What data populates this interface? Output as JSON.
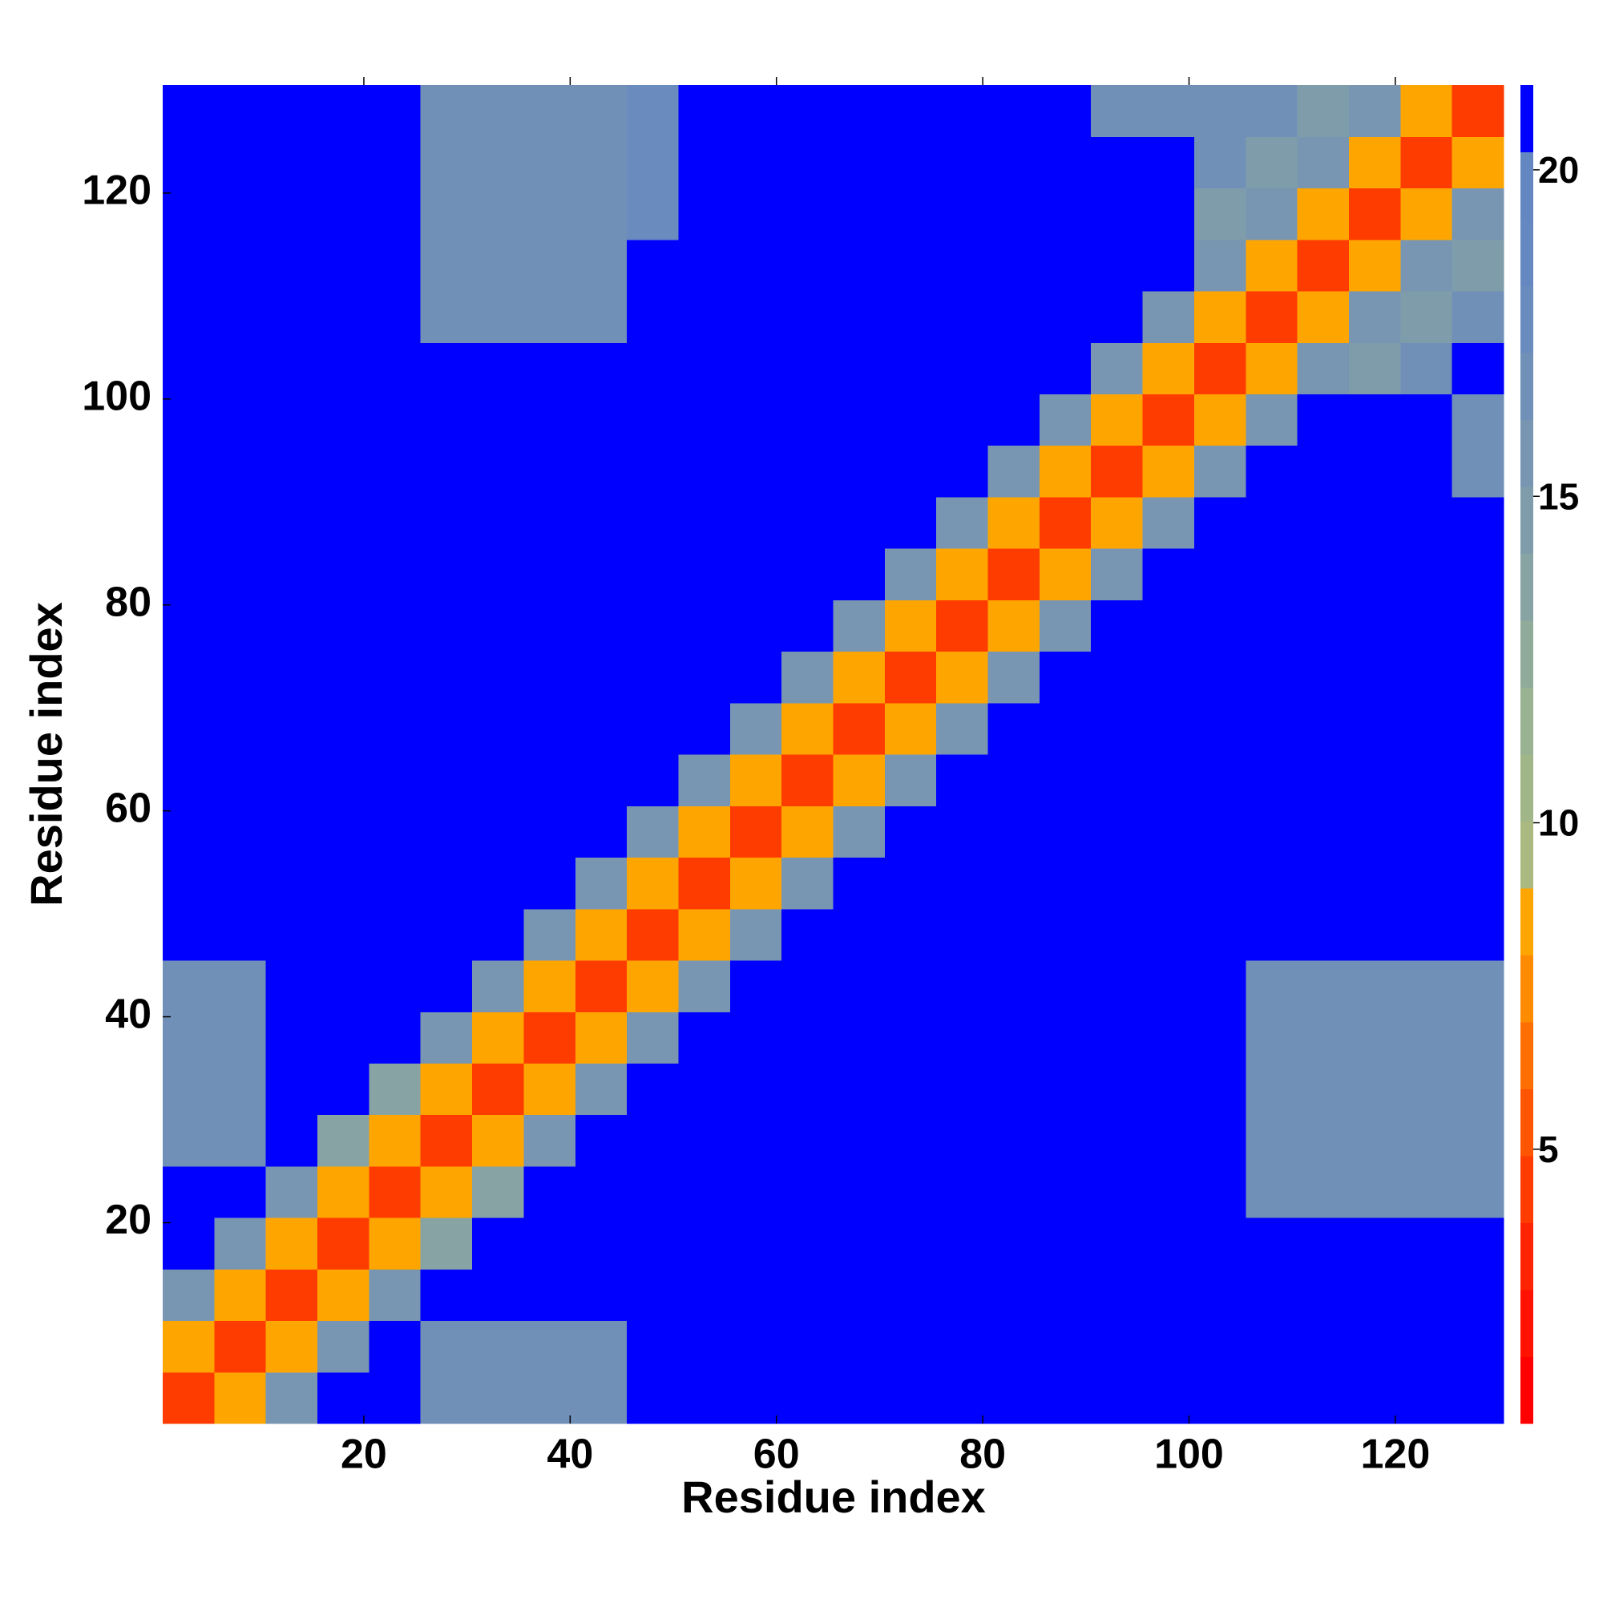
{
  "chart_data": {
    "type": "heatmap",
    "x_label": "Residue index",
    "y_label": "Residue index",
    "x_bins": [
      0.5,
      5.5,
      10.5,
      15.5,
      20.5,
      25.5,
      30.5,
      35.5,
      40.5,
      45.5,
      50.5,
      55.5,
      60.5,
      65.5,
      70.5,
      75.5,
      80.5,
      85.5,
      90.5,
      95.5,
      100.5,
      105.5,
      110.5,
      115.5,
      120.5,
      125.5,
      130.5
    ],
    "y_bins": [
      0.5,
      5.5,
      10.5,
      15.5,
      20.5,
      25.5,
      30.5,
      35.5,
      40.5,
      45.5,
      50.5,
      55.5,
      60.5,
      65.5,
      70.5,
      75.5,
      80.5,
      85.5,
      90.5,
      95.5,
      100.5,
      105.5,
      110.5,
      115.5,
      120.5,
      125.5,
      130.5
    ],
    "xlim": [
      0.5,
      130.5
    ],
    "ylim": [
      0.5,
      130.5
    ],
    "xticks": [
      20,
      40,
      60,
      80,
      100,
      120
    ],
    "yticks": [
      20,
      40,
      60,
      80,
      100,
      120
    ],
    "zlim": [
      0.8,
      21.3
    ],
    "zticks": [
      5,
      10,
      15,
      20
    ],
    "colors": [
      "#ff0000",
      "#ff1200",
      "#ff2400",
      "#ff3c00",
      "#ff5500",
      "#ff6e00",
      "#ff8c00",
      "#ffa500",
      "#a9b97f",
      "#a0b689",
      "#98b292",
      "#90ab9a",
      "#88a3a3",
      "#7f9cab",
      "#7896b2",
      "#7090b8",
      "#6a8bbd",
      "#6688c0",
      "#6487c2",
      "#0000ff"
    ],
    "z": [
      [
        4,
        9,
        16,
        22,
        22,
        17,
        17,
        17,
        17,
        22,
        22,
        22,
        22,
        22,
        22,
        22,
        22,
        22,
        22,
        22,
        22,
        22,
        22,
        22,
        22,
        22
      ],
      [
        9,
        4,
        9,
        16,
        22,
        17,
        17,
        17,
        17,
        22,
        22,
        22,
        22,
        22,
        22,
        22,
        22,
        22,
        22,
        22,
        22,
        22,
        22,
        22,
        22,
        22
      ],
      [
        16,
        9,
        4,
        9,
        16,
        22,
        22,
        22,
        22,
        22,
        22,
        22,
        22,
        22,
        22,
        22,
        22,
        22,
        22,
        22,
        22,
        22,
        22,
        22,
        22,
        22
      ],
      [
        22,
        16,
        9,
        4,
        9,
        14,
        22,
        22,
        22,
        22,
        22,
        22,
        22,
        22,
        22,
        22,
        22,
        22,
        22,
        22,
        22,
        22,
        22,
        22,
        22,
        22
      ],
      [
        22,
        22,
        16,
        9,
        4,
        9,
        14,
        22,
        22,
        22,
        22,
        22,
        22,
        22,
        22,
        22,
        22,
        22,
        22,
        22,
        22,
        17,
        17,
        17,
        17,
        17
      ],
      [
        17,
        17,
        22,
        14,
        9,
        4,
        9,
        16,
        22,
        22,
        22,
        22,
        22,
        22,
        22,
        22,
        22,
        22,
        22,
        22,
        22,
        17,
        17,
        17,
        17,
        17
      ],
      [
        17,
        17,
        22,
        22,
        14,
        9,
        4,
        9,
        16,
        22,
        22,
        22,
        22,
        22,
        22,
        22,
        22,
        22,
        22,
        22,
        22,
        17,
        17,
        17,
        17,
        17
      ],
      [
        17,
        17,
        22,
        22,
        22,
        16,
        9,
        4,
        9,
        16,
        22,
        22,
        22,
        22,
        22,
        22,
        22,
        22,
        22,
        22,
        22,
        17,
        17,
        17,
        17,
        17
      ],
      [
        17,
        17,
        22,
        22,
        22,
        22,
        16,
        9,
        4,
        9,
        16,
        22,
        22,
        22,
        22,
        22,
        22,
        22,
        22,
        22,
        22,
        17,
        17,
        17,
        17,
        17
      ],
      [
        22,
        22,
        22,
        22,
        22,
        22,
        22,
        16,
        9,
        4,
        9,
        16,
        22,
        22,
        22,
        22,
        22,
        22,
        22,
        22,
        22,
        22,
        22,
        22,
        22,
        22
      ],
      [
        22,
        22,
        22,
        22,
        22,
        22,
        22,
        22,
        16,
        9,
        4,
        9,
        16,
        22,
        22,
        22,
        22,
        22,
        22,
        22,
        22,
        22,
        22,
        22,
        22,
        22
      ],
      [
        22,
        22,
        22,
        22,
        22,
        22,
        22,
        22,
        22,
        16,
        9,
        4,
        9,
        16,
        22,
        22,
        22,
        22,
        22,
        22,
        22,
        22,
        22,
        22,
        22,
        22
      ],
      [
        22,
        22,
        22,
        22,
        22,
        22,
        22,
        22,
        22,
        22,
        16,
        9,
        4,
        9,
        16,
        22,
        22,
        22,
        22,
        22,
        22,
        22,
        22,
        22,
        22,
        22
      ],
      [
        22,
        22,
        22,
        22,
        22,
        22,
        22,
        22,
        22,
        22,
        22,
        16,
        9,
        4,
        9,
        16,
        22,
        22,
        22,
        22,
        22,
        22,
        22,
        22,
        22,
        22
      ],
      [
        22,
        22,
        22,
        22,
        22,
        22,
        22,
        22,
        22,
        22,
        22,
        22,
        16,
        9,
        4,
        9,
        16,
        22,
        22,
        22,
        22,
        22,
        22,
        22,
        22,
        22
      ],
      [
        22,
        22,
        22,
        22,
        22,
        22,
        22,
        22,
        22,
        22,
        22,
        22,
        22,
        16,
        9,
        4,
        9,
        16,
        22,
        22,
        22,
        22,
        22,
        22,
        22,
        22
      ],
      [
        22,
        22,
        22,
        22,
        22,
        22,
        22,
        22,
        22,
        22,
        22,
        22,
        22,
        22,
        16,
        9,
        4,
        9,
        16,
        22,
        22,
        22,
        22,
        22,
        22,
        22
      ],
      [
        22,
        22,
        22,
        22,
        22,
        22,
        22,
        22,
        22,
        22,
        22,
        22,
        22,
        22,
        22,
        16,
        9,
        4,
        9,
        16,
        22,
        22,
        22,
        22,
        22,
        22
      ],
      [
        22,
        22,
        22,
        22,
        22,
        22,
        22,
        22,
        22,
        22,
        22,
        22,
        22,
        22,
        22,
        22,
        16,
        9,
        4,
        9,
        16,
        22,
        22,
        22,
        22,
        17
      ],
      [
        22,
        22,
        22,
        22,
        22,
        22,
        22,
        22,
        22,
        22,
        22,
        22,
        22,
        22,
        22,
        22,
        22,
        16,
        9,
        4,
        9,
        16,
        22,
        22,
        22,
        17
      ],
      [
        22,
        22,
        22,
        22,
        22,
        22,
        22,
        22,
        22,
        22,
        22,
        22,
        22,
        22,
        22,
        22,
        22,
        22,
        16,
        9,
        4,
        9,
        16,
        15,
        17,
        22
      ],
      [
        22,
        22,
        22,
        22,
        22,
        17,
        17,
        17,
        17,
        22,
        22,
        22,
        22,
        22,
        22,
        22,
        22,
        22,
        22,
        16,
        9,
        4,
        9,
        16,
        15,
        17
      ],
      [
        22,
        22,
        22,
        22,
        22,
        17,
        17,
        17,
        17,
        22,
        22,
        22,
        22,
        22,
        22,
        22,
        22,
        22,
        22,
        22,
        16,
        9,
        4,
        9,
        16,
        15
      ],
      [
        22,
        22,
        22,
        22,
        22,
        17,
        17,
        17,
        17,
        18,
        22,
        22,
        22,
        22,
        22,
        22,
        22,
        22,
        22,
        22,
        15,
        16,
        9,
        4,
        9,
        16
      ],
      [
        22,
        22,
        22,
        22,
        22,
        17,
        17,
        17,
        17,
        18,
        22,
        22,
        22,
        22,
        22,
        22,
        22,
        22,
        22,
        22,
        17,
        15,
        16,
        9,
        4,
        9
      ],
      [
        22,
        22,
        22,
        22,
        22,
        17,
        17,
        17,
        17,
        18,
        22,
        22,
        22,
        22,
        22,
        22,
        22,
        22,
        17,
        17,
        17,
        17,
        15,
        16,
        9,
        4
      ]
    ]
  }
}
